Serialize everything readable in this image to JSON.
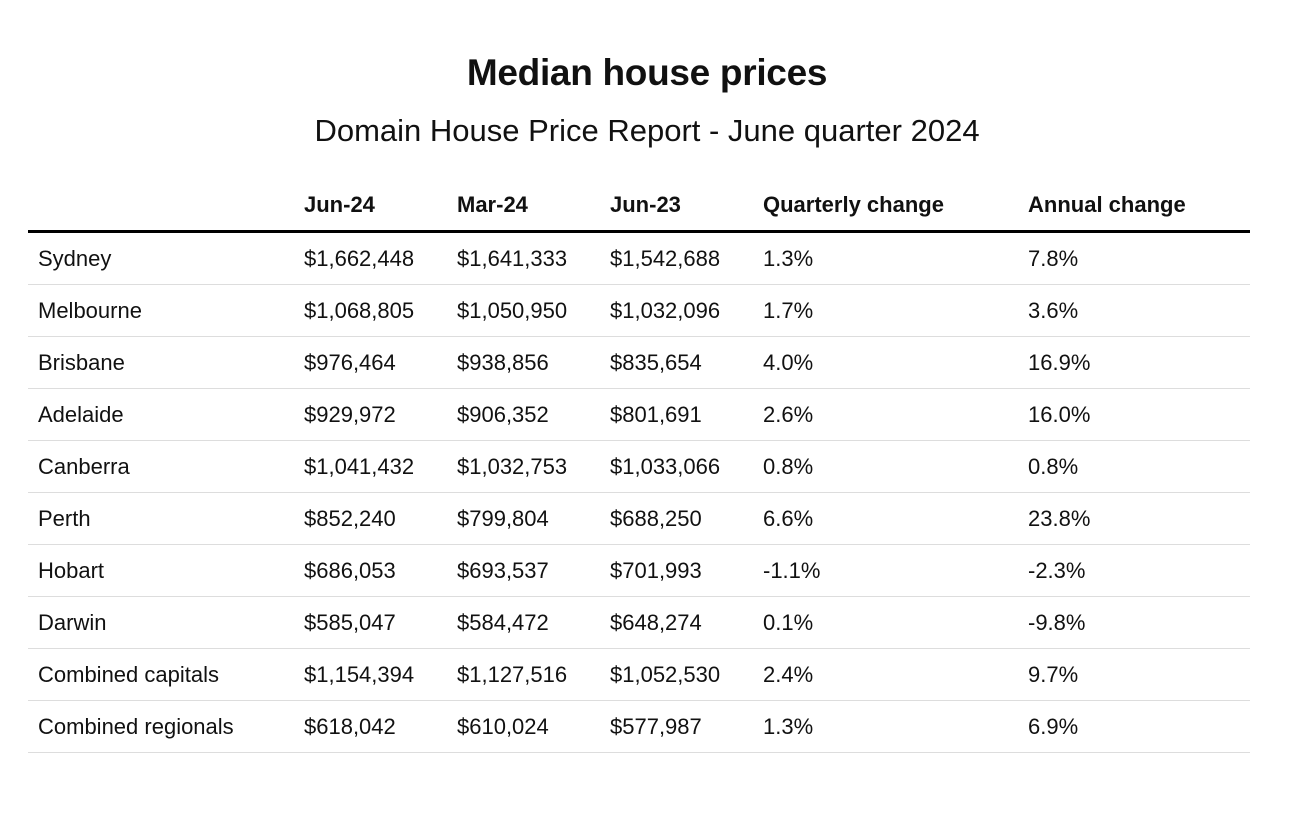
{
  "chart_data": {
    "type": "table",
    "title": "Median house prices",
    "subtitle": "Domain House Price Report - June quarter 2024",
    "columns": [
      "",
      "Jun-24",
      "Mar-24",
      "Jun-23",
      "Quarterly change",
      "Annual change"
    ],
    "rows": [
      [
        "Sydney",
        "$1,662,448",
        "$1,641,333",
        "$1,542,688",
        "1.3%",
        "7.8%"
      ],
      [
        "Melbourne",
        "$1,068,805",
        "$1,050,950",
        "$1,032,096",
        "1.7%",
        "3.6%"
      ],
      [
        "Brisbane",
        "$976,464",
        "$938,856",
        "$835,654",
        "4.0%",
        "16.9%"
      ],
      [
        "Adelaide",
        "$929,972",
        "$906,352",
        "$801,691",
        "2.6%",
        "16.0%"
      ],
      [
        "Canberra",
        "$1,041,432",
        "$1,032,753",
        "$1,033,066",
        "0.8%",
        "0.8%"
      ],
      [
        "Perth",
        "$852,240",
        "$799,804",
        "$688,250",
        "6.6%",
        "23.8%"
      ],
      [
        "Hobart",
        "$686,053",
        "$693,537",
        "$701,993",
        "-1.1%",
        "-2.3%"
      ],
      [
        "Darwin",
        "$585,047",
        "$584,472",
        "$648,274",
        "0.1%",
        "-9.8%"
      ],
      [
        "Combined capitals",
        "$1,154,394",
        "$1,127,516",
        "$1,052,530",
        "2.4%",
        "9.7%"
      ],
      [
        "Combined regionals",
        "$618,042",
        "$610,024",
        "$577,987",
        "1.3%",
        "6.9%"
      ]
    ]
  },
  "style": {
    "header_rule_color": "#000000",
    "row_rule_color": "#dddddd",
    "text_color": "#111111",
    "background": "#ffffff"
  }
}
